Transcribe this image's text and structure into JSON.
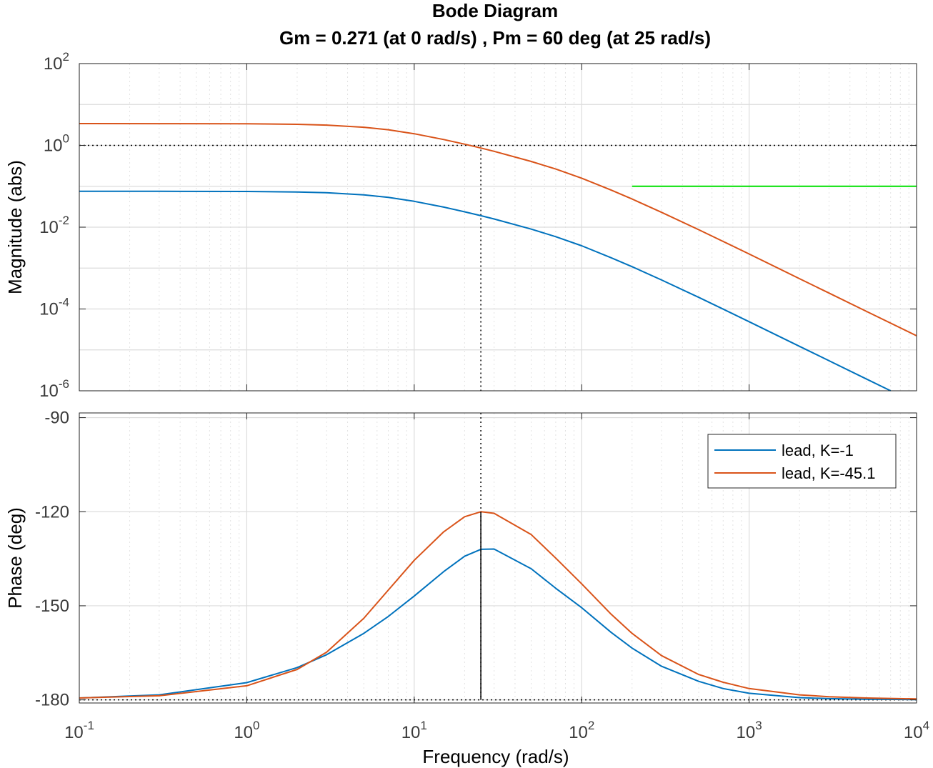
{
  "chart_data": {
    "type": "line",
    "title": "Bode Diagram",
    "subtitle": "Gm = 0.271  (at 0 rad/s) ,  Pm = 60 deg (at 25 rad/s)",
    "xlabel": "Frequency  (rad/s)",
    "x_scale": "log",
    "xlim": [
      0.1,
      10000
    ],
    "x_ticks": [
      {
        "base": "10",
        "exp": "-1"
      },
      {
        "base": "10",
        "exp": "0"
      },
      {
        "base": "10",
        "exp": "1"
      },
      {
        "base": "10",
        "exp": "2"
      },
      {
        "base": "10",
        "exp": "3"
      },
      {
        "base": "10",
        "exp": "4"
      }
    ],
    "grid": true,
    "crossover_frequency": 25,
    "magnitude": {
      "ylabel": "Magnitude (abs)",
      "y_scale": "log",
      "ylim": [
        1e-06,
        100
      ],
      "y_ticks": [
        {
          "base": "10",
          "exp": "2"
        },
        {
          "base": "10",
          "exp": "0"
        },
        {
          "base": "10",
          "exp": "-2"
        },
        {
          "base": "10",
          "exp": "-4"
        },
        {
          "base": "10",
          "exp": "-6"
        }
      ],
      "reference_line": 1,
      "series": [
        {
          "name": "lead, K=-1",
          "color": "#0072BD",
          "x": [
            0.1,
            0.3,
            1,
            2,
            3,
            5,
            7,
            10,
            15,
            20,
            25,
            30,
            50,
            70,
            100,
            150,
            200,
            300,
            500,
            700,
            1000,
            2000,
            3000,
            5000,
            7000
          ],
          "y": [
            0.0755,
            0.0754,
            0.0747,
            0.0727,
            0.0696,
            0.0617,
            0.0534,
            0.0428,
            0.0309,
            0.0237,
            0.0191,
            0.0159,
            0.00896,
            0.00586,
            0.00351,
            0.00179,
            0.00108,
            0.000512,
            0.000193,
            9.93e-05,
            4.89e-05,
            1.22e-05,
            5.43e-06,
            1.96e-06,
            1e-06
          ]
        },
        {
          "name": "lead, K=-45.1",
          "color": "#D95319",
          "x": [
            0.1,
            0.3,
            1,
            2,
            3,
            5,
            7,
            10,
            15,
            20,
            25,
            30,
            50,
            70,
            100,
            150,
            200,
            300,
            500,
            700,
            1000,
            2000,
            3000,
            5000,
            10000
          ],
          "y": [
            3.405,
            3.4,
            3.37,
            3.28,
            3.14,
            2.78,
            2.41,
            1.93,
            1.39,
            1.07,
            0.861,
            0.717,
            0.404,
            0.264,
            0.158,
            0.0807,
            0.0487,
            0.0231,
            0.0087,
            0.00448,
            0.00221,
            0.000551,
            0.000245,
            8.83e-05,
            2.21e-05
          ]
        }
      ],
      "marker_line": {
        "color": "#00E000",
        "x": [
          200,
          10000
        ],
        "y": 0.1
      }
    },
    "phase": {
      "ylabel": "Phase (deg)",
      "ylim": [
        -181,
        -88.5
      ],
      "y_ticks": [
        "-90",
        "-120",
        "-150",
        "-180"
      ],
      "reference_line": -180,
      "series": [
        {
          "name": "lead, K=-1",
          "color": "#0072BD",
          "x": [
            0.1,
            0.3,
            1,
            2,
            3,
            5,
            7,
            10,
            15,
            20,
            25,
            30,
            50,
            70,
            100,
            150,
            200,
            300,
            500,
            700,
            1000,
            2000,
            3000,
            5000,
            10000
          ],
          "y": [
            -179.4,
            -178.4,
            -174.5,
            -169.7,
            -165.6,
            -158.8,
            -153.4,
            -146.9,
            -139.1,
            -134.2,
            -132.0,
            -131.9,
            -138.2,
            -144.4,
            -150.6,
            -158.5,
            -163.5,
            -169.3,
            -174.1,
            -176.4,
            -177.9,
            -179.3,
            -179.6,
            -179.8,
            -179.9
          ]
        },
        {
          "name": "lead, K=-45.1",
          "color": "#D95319",
          "x": [
            0.1,
            0.3,
            1,
            2,
            3,
            5,
            7,
            10,
            15,
            20,
            25,
            30,
            50,
            70,
            100,
            150,
            200,
            300,
            500,
            700,
            1000,
            2000,
            3000,
            5000,
            10000
          ],
          "y": [
            -179.4,
            -178.7,
            -175.5,
            -170.3,
            -164.8,
            -154.0,
            -145.0,
            -135.5,
            -126.4,
            -121.6,
            -120.0,
            -120.5,
            -127.3,
            -134.8,
            -143.0,
            -152.7,
            -158.8,
            -165.9,
            -171.9,
            -174.4,
            -176.4,
            -178.4,
            -179.0,
            -179.4,
            -179.7
          ]
        }
      ]
    },
    "legend": {
      "position": "top-right",
      "entries": [
        "lead, K=-1",
        "lead, K=-45.1"
      ]
    }
  }
}
